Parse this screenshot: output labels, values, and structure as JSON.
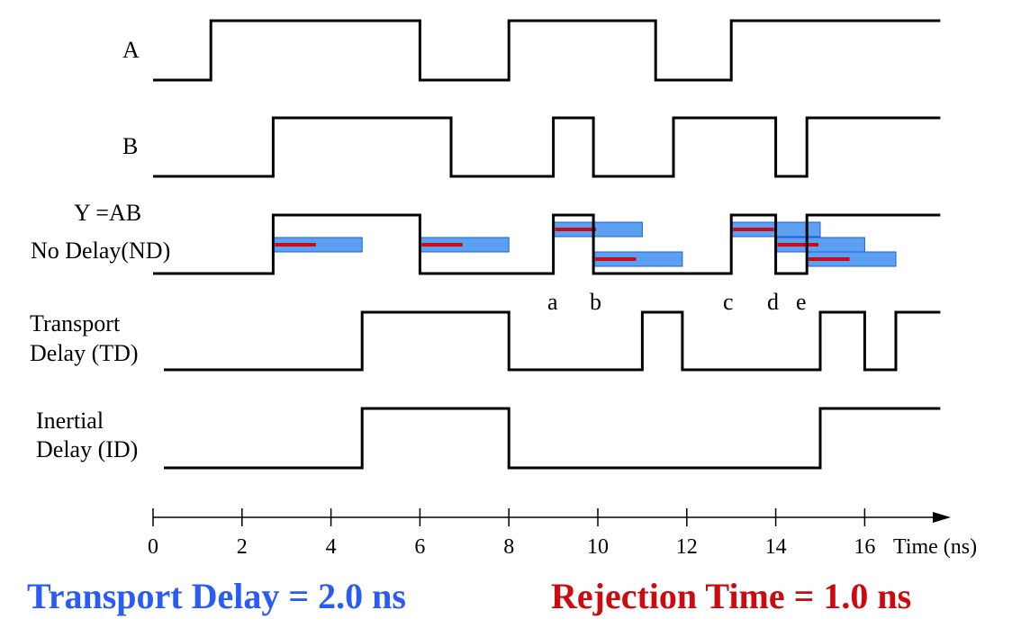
{
  "signals": [
    {
      "id": "A",
      "label_lines": [
        "A"
      ],
      "initial": 0,
      "edges": [
        1.3,
        6.0,
        8.0,
        11.3,
        13.0
      ]
    },
    {
      "id": "B",
      "label_lines": [
        "B"
      ],
      "initial": 0,
      "edges": [
        2.7,
        6.7,
        9.0,
        9.9,
        11.7,
        14.0,
        14.7
      ]
    },
    {
      "id": "Y",
      "label_lines": [
        "Y =AB",
        "No Delay(ND)"
      ],
      "initial": 0,
      "edges": [
        2.7,
        6.0,
        9.0,
        9.9,
        13.0,
        14.0,
        14.7
      ]
    },
    {
      "id": "TD",
      "label_lines": [
        "Transport",
        "Delay (TD)"
      ],
      "initial": 0,
      "edges": [
        4.7,
        8.0,
        11.0,
        11.9,
        15.0,
        16.0,
        16.7
      ]
    },
    {
      "id": "ID",
      "label_lines": [
        "Inertial",
        "Delay (ID)"
      ],
      "initial": 0,
      "edges": [
        4.7,
        8.0,
        15.0
      ]
    }
  ],
  "delay_bars": [
    {
      "start": 2.7,
      "level": 0
    },
    {
      "start": 6.0,
      "level": 0
    },
    {
      "start": 9.0,
      "level": 1
    },
    {
      "start": 9.9,
      "level": 2
    },
    {
      "start": 13.0,
      "level": 1
    },
    {
      "start": 14.0,
      "level": 0
    },
    {
      "start": 14.7,
      "level": 2
    }
  ],
  "transport_delay_ns": 2.0,
  "rejection_time_ns": 1.0,
  "edge_markers": [
    {
      "label": "a",
      "t": 9.0
    },
    {
      "label": "b",
      "t": 9.9
    },
    {
      "label": "c",
      "t": 13.0
    },
    {
      "label": "d",
      "t": 14.0
    },
    {
      "label": "e",
      "t": 14.7
    }
  ],
  "axis": {
    "ticks": [
      "0",
      "2",
      "4",
      "6",
      "8",
      "10",
      "12",
      "14",
      "16"
    ],
    "tick_values": [
      0,
      2,
      4,
      6,
      8,
      10,
      12,
      14,
      16
    ],
    "unit_label": "Time (ns)",
    "t_max": 17.7
  },
  "captions": {
    "transport": "Transport Delay = 2.0 ns",
    "rejection": "Rejection Time = 1.0 ns"
  },
  "colors": {
    "transport_caption": "#2a5cf5",
    "rejection_caption": "#cc0a10",
    "delay_bar": "#3f8ff0",
    "rejection_line": "#cc0a10",
    "waveform": "#000000"
  }
}
